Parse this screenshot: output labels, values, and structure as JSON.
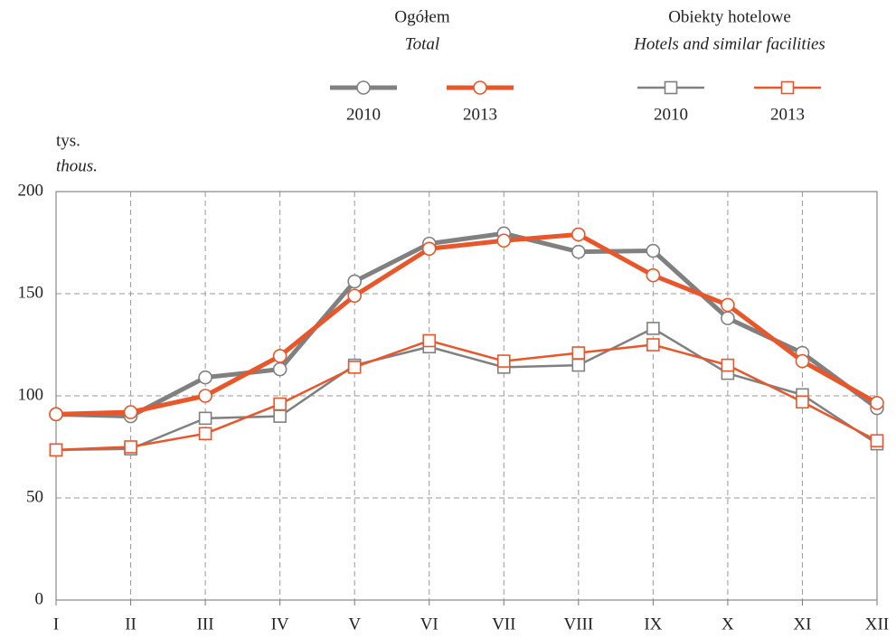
{
  "chart_data": {
    "type": "line",
    "y_label": "tys.",
    "y_label_en": "thous.",
    "legend_groups": [
      {
        "title": "Ogółem",
        "subtitle": "Total",
        "marker": "circle"
      },
      {
        "title": "Obiekty hotelowe",
        "subtitle": "Hotels and similar facilities",
        "marker": "square"
      }
    ],
    "categories": [
      "I",
      "II",
      "III",
      "IV",
      "V",
      "VI",
      "VII",
      "VIII",
      "IX",
      "X",
      "XI",
      "XII"
    ],
    "series": [
      {
        "name": "2010",
        "color": "#808080",
        "marker": "circle",
        "line_width": 5,
        "values": [
          91,
          90,
          109,
          113,
          156,
          174.5,
          179.5,
          170.5,
          171,
          138,
          121,
          94
        ]
      },
      {
        "name": "2013",
        "color": "#e8562a",
        "marker": "circle",
        "line_width": 5,
        "values": [
          91,
          92,
          100,
          119.5,
          149,
          172,
          176,
          179,
          159,
          144.5,
          117,
          96.5
        ]
      },
      {
        "name": "2010",
        "color": "#808080",
        "marker": "square",
        "line_width": 2.5,
        "values": [
          73.5,
          74,
          89,
          90,
          115,
          124,
          114,
          115,
          133,
          111,
          100.5,
          76.5
        ]
      },
      {
        "name": "2013",
        "color": "#e8562a",
        "marker": "square",
        "line_width": 2.5,
        "values": [
          73.5,
          75,
          81.5,
          96,
          114,
          127,
          117,
          121,
          125,
          115,
          97,
          78
        ]
      }
    ],
    "ylim": [
      0,
      200
    ],
    "yticks": [
      0,
      50,
      100,
      150,
      200
    ],
    "grid": true
  }
}
